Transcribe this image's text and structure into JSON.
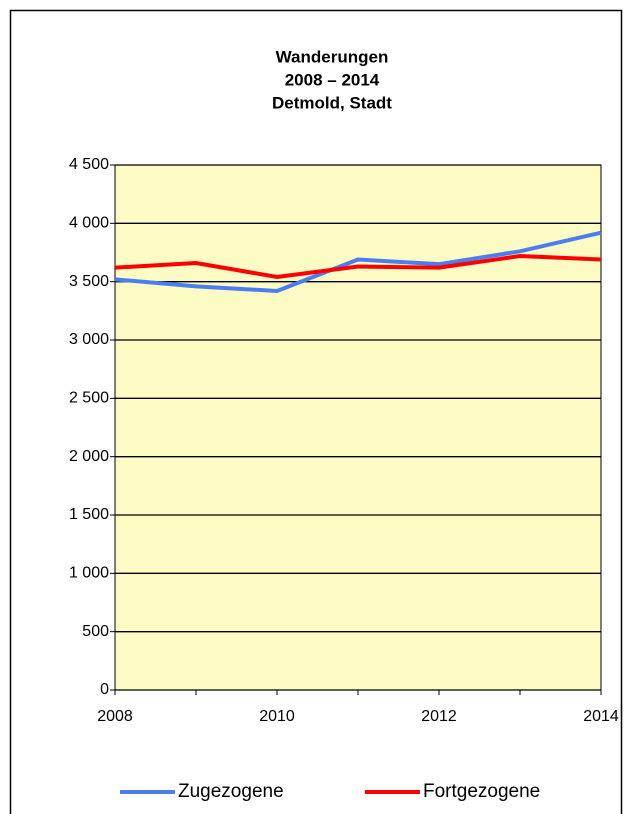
{
  "chart_data": {
    "type": "line",
    "title": [
      "Wanderungen",
      "2008 – 2014",
      "Detmold, Stadt"
    ],
    "x": [
      2008,
      2009,
      2010,
      2011,
      2012,
      2013,
      2014
    ],
    "xlim": [
      2008,
      2014
    ],
    "xticks": [
      2008,
      2010,
      2012,
      2014
    ],
    "ylim": [
      0,
      4500
    ],
    "yticks": [
      0,
      {
        "value": 500,
        "label": "500"
      },
      {
        "value": 1000,
        "label": "1 000"
      },
      {
        "value": 1500,
        "label": "1 500"
      },
      {
        "value": 2000,
        "label": "2 000"
      },
      {
        "value": 2500,
        "label": "2 500"
      },
      {
        "value": 3000,
        "label": "3 000"
      },
      {
        "value": 3500,
        "label": "3 500"
      },
      {
        "value": 4000,
        "label": "4 000"
      },
      {
        "value": 4500,
        "label": "4 500"
      }
    ],
    "grid": true,
    "legend": "bottom",
    "series": [
      {
        "name": "Zugezogene",
        "color": "#4a7ef0",
        "values": [
          3520,
          3460,
          3420,
          3690,
          3650,
          3760,
          3920
        ]
      },
      {
        "name": "Fortgezogene",
        "color": "#ff0000",
        "values": [
          3620,
          3660,
          3540,
          3630,
          3620,
          3720,
          3690
        ]
      }
    ]
  }
}
